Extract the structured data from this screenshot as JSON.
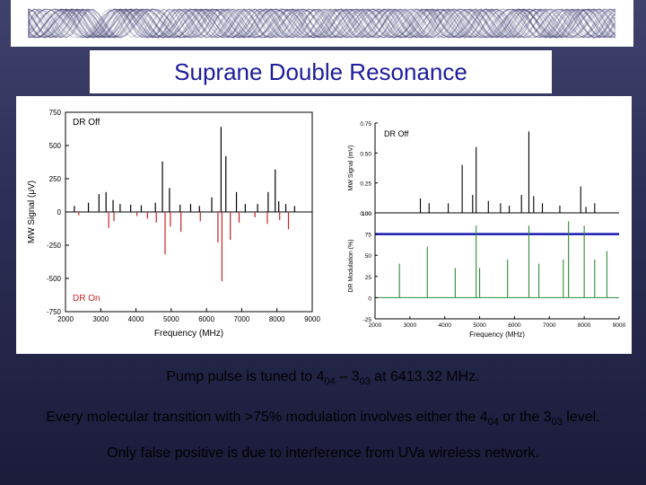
{
  "slide": {
    "title": "Suprane Double Resonance",
    "caption1": {
      "a": "Pump pulse is tuned to 4",
      "b": "04",
      "c": " – 3",
      "d": "03",
      "e": " at 6413.32 MHz."
    },
    "caption2": {
      "a": "Every molecular transition with >75% modulation involves either the 4",
      "b": "04",
      "c": " or the 3",
      "d": "03",
      "e": " level."
    },
    "caption3": "Only false positive is due to interference from UVa wireless network.",
    "colors": {
      "title": "#1c1c9c",
      "dr_off": "#000000",
      "dr_on": "#cc2222",
      "modulation": "#2e8b3a",
      "threshold": "#1a1ab0"
    }
  },
  "chart_data": [
    {
      "type": "bar",
      "xlabel": "Frequency (MHz)",
      "ylabel": "MW Signal (μV)",
      "xlim": [
        2000,
        9000
      ],
      "ylim": [
        -750,
        750
      ],
      "x_ticks": [
        "2000",
        "3000",
        "4000",
        "5000",
        "6000",
        "7000",
        "8000",
        "9000"
      ],
      "y_ticks": [
        "750",
        "500",
        "250",
        "0",
        "-250",
        "-500",
        "-750"
      ],
      "annotations": [
        "DR Off",
        "DR On"
      ],
      "series": [
        {
          "label": "DR Off",
          "x": [
            2250,
            2650,
            2950,
            3150,
            3350,
            3550,
            3850,
            4150,
            4550,
            4750,
            4950,
            5250,
            5550,
            5800,
            6150,
            6413,
            6550,
            6850,
            7100,
            7450,
            7750,
            7950,
            8050,
            8250,
            8500
          ],
          "y": [
            45,
            70,
            135,
            150,
            90,
            60,
            55,
            50,
            70,
            380,
            180,
            55,
            60,
            45,
            110,
            640,
            420,
            150,
            60,
            60,
            150,
            320,
            80,
            60,
            45
          ]
        },
        {
          "label": "DR On",
          "x": [
            2350,
            3200,
            3350,
            4000,
            4300,
            4550,
            4800,
            4950,
            5250,
            5800,
            6300,
            6413,
            6650,
            6900,
            7350,
            7700,
            8050,
            8300
          ],
          "y": [
            -25,
            -120,
            -70,
            -30,
            -50,
            -80,
            -320,
            -110,
            -150,
            -70,
            -230,
            -520,
            -210,
            -80,
            -40,
            -90,
            -60,
            -130
          ]
        }
      ]
    },
    {
      "type": "bar",
      "xlabel": "Frequency (MHz)",
      "ylabel_top": "MW Signal (mV)",
      "ylabel_bottom": "DR Modulation (%)",
      "xlim": [
        2000,
        9000
      ],
      "x_ticks": [
        "2000",
        "3000",
        "4000",
        "5000",
        "6000",
        "7000",
        "8000",
        "9000"
      ],
      "top_ylim": [
        0,
        0.75
      ],
      "top_y_ticks": [
        "0.75",
        "0.50",
        "0.25",
        "0.00"
      ],
      "bottom_ylim": [
        -25,
        100
      ],
      "bottom_y_ticks": [
        "100",
        "75",
        "50",
        "25",
        "0",
        "-25"
      ],
      "threshold": 75,
      "annotations": [
        "DR Off"
      ],
      "series": [
        {
          "label": "DR Off",
          "x": [
            3300,
            3550,
            4100,
            4500,
            4800,
            4900,
            5250,
            5600,
            5850,
            6200,
            6413,
            6550,
            6800,
            7300,
            7900,
            8050,
            8300
          ],
          "y": [
            0.12,
            0.08,
            0.08,
            0.4,
            0.15,
            0.55,
            0.1,
            0.08,
            0.06,
            0.15,
            0.68,
            0.14,
            0.08,
            0.06,
            0.22,
            0.05,
            0.08
          ]
        },
        {
          "label": "DR Modulation",
          "x": [
            2700,
            3500,
            4300,
            4900,
            5000,
            5800,
            6413,
            6700,
            7400,
            7550,
            8000,
            8300,
            8650
          ],
          "y": [
            40,
            60,
            35,
            85,
            35,
            45,
            85,
            40,
            45,
            90,
            85,
            45,
            55
          ]
        }
      ]
    }
  ]
}
